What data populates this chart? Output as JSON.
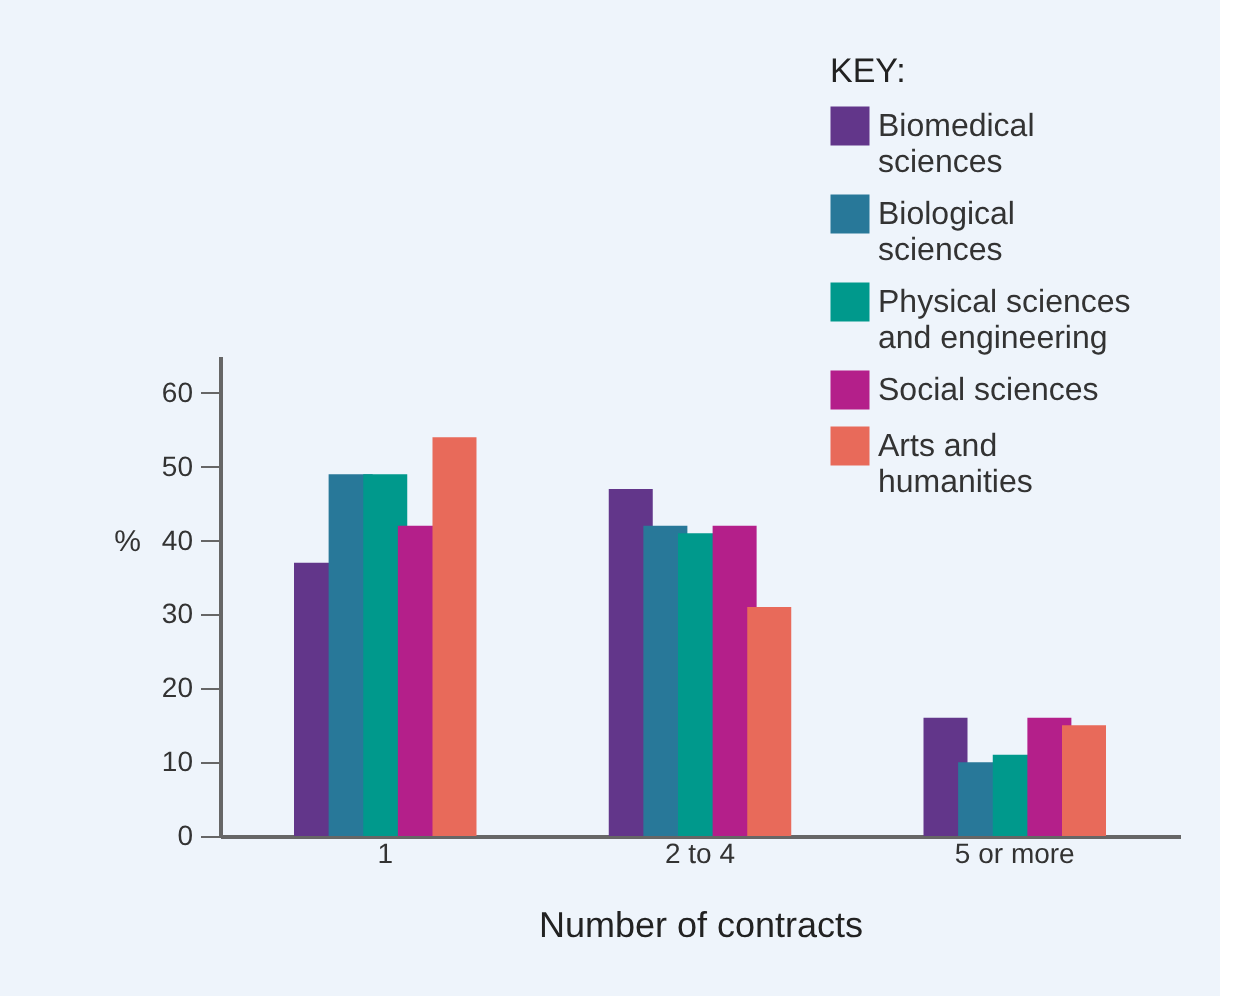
{
  "chart_data": {
    "type": "bar",
    "xlabel": "Number of contracts",
    "ylabel": "%",
    "legend_title": "KEY:",
    "categories": [
      "1",
      "2 to 4",
      "5 or more"
    ],
    "series": [
      {
        "name": "Biomedical sciences",
        "color": "#62368a",
        "values": [
          37,
          47,
          16
        ]
      },
      {
        "name": "Biological sciences",
        "color": "#287899",
        "values": [
          49,
          42,
          10
        ]
      },
      {
        "name": "Physical sciences and engineering",
        "color": "#00998c",
        "values": [
          49,
          41,
          11
        ]
      },
      {
        "name": "Social sciences",
        "color": "#b41f8a",
        "values": [
          42,
          42,
          16
        ]
      },
      {
        "name": "Arts and humanities",
        "color": "#e86a5a",
        "values": [
          54,
          31,
          15
        ]
      }
    ],
    "ylim": [
      0,
      65
    ],
    "yticks": [
      0,
      10,
      20,
      30,
      40,
      50,
      60
    ],
    "grid": false,
    "legend": "top right"
  }
}
